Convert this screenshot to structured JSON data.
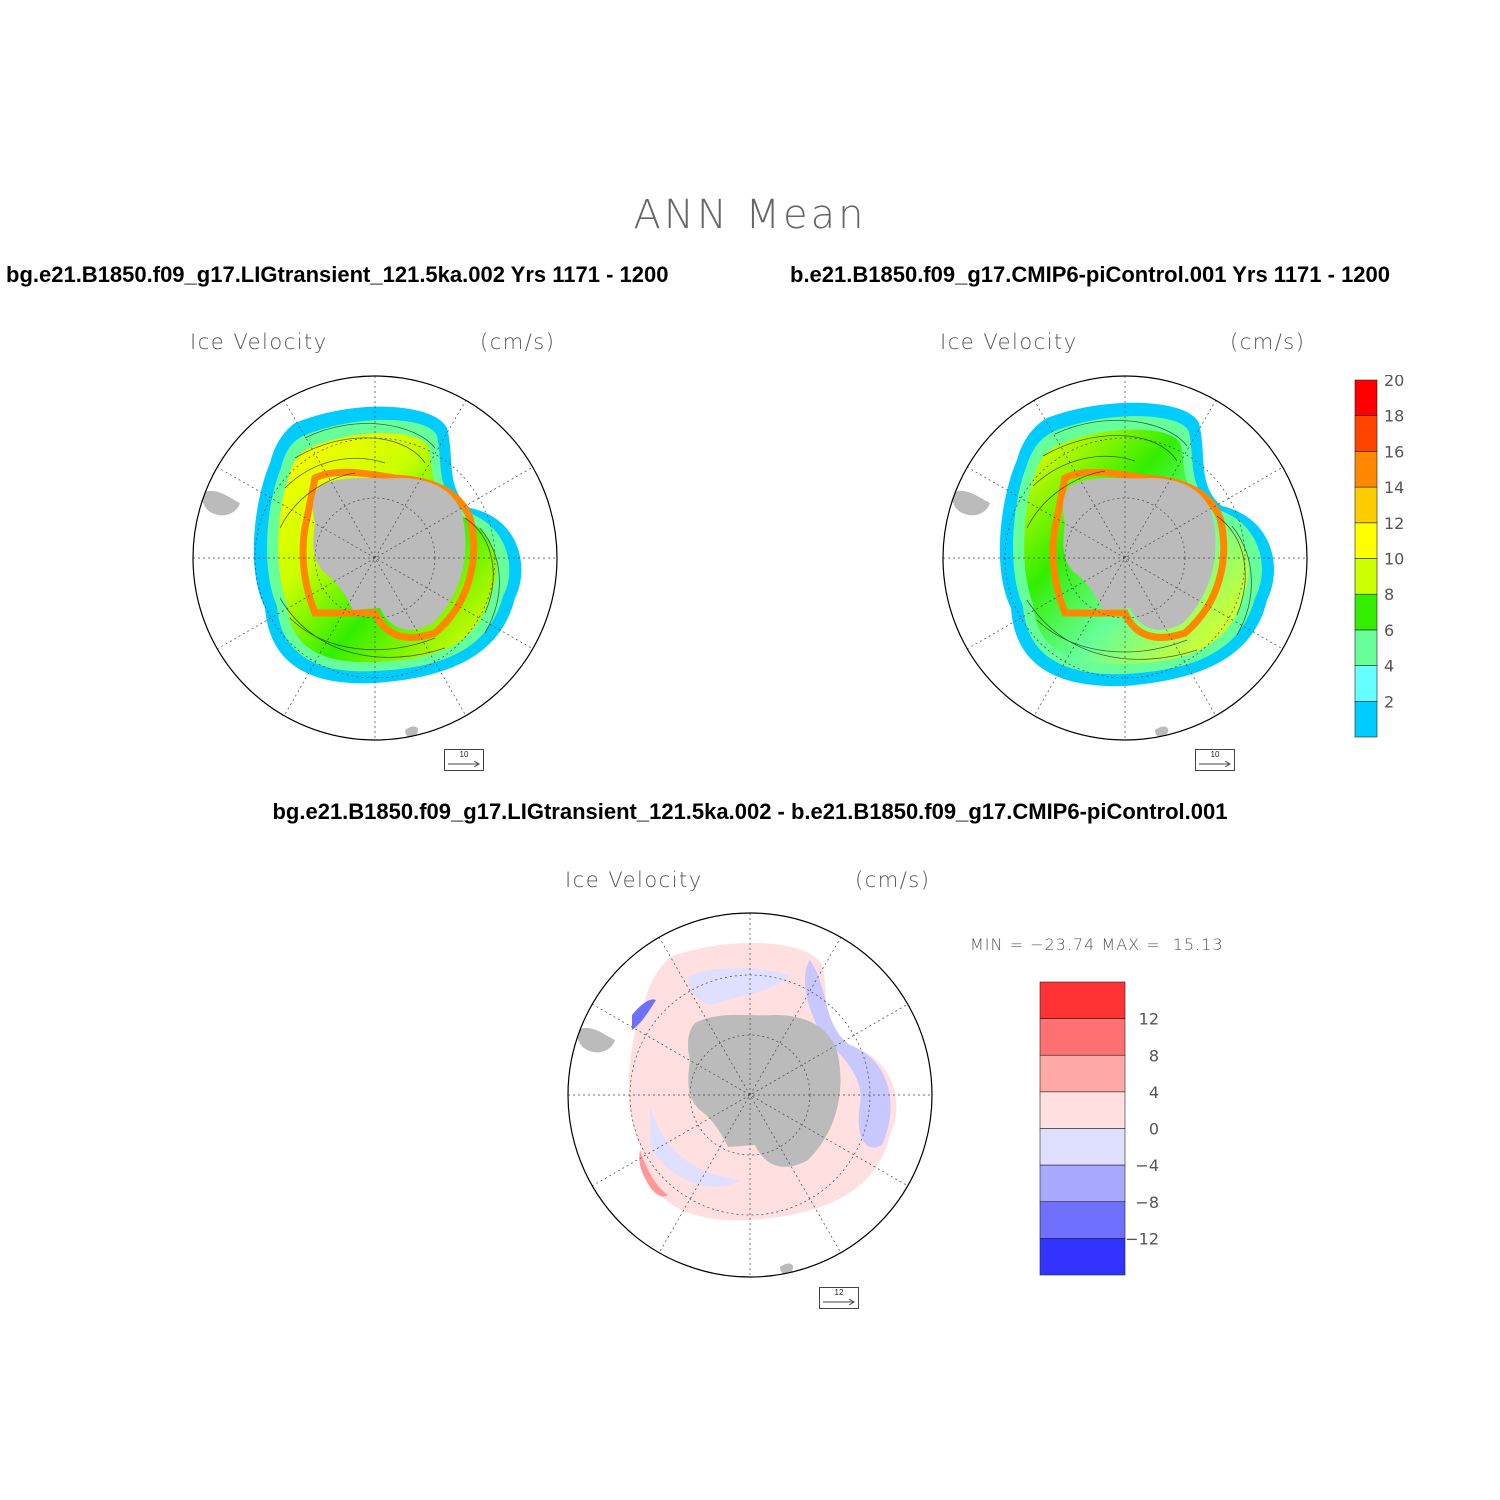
{
  "page": {
    "title": "ANN Mean",
    "case1_title": "bg.e21.B1850.f09_g17.LIGtransient_121.5ka.002  Yrs 1171 - 1200",
    "case2_title": "b.e21.B1850.f09_g17.CMIP6-piControl.001  Yrs 1171 - 1200",
    "diff_title": "bg.e21.B1850.f09_g17.LIGtransient_121.5ka.002 - b.e21.B1850.f09_g17.CMIP6-piControl.001"
  },
  "panels": {
    "case1": {
      "field": "Ice Velocity",
      "units": "(cm/s)",
      "ref_vector": "10"
    },
    "case2": {
      "field": "Ice Velocity",
      "units": "(cm/s)",
      "ref_vector": "10"
    },
    "diff": {
      "field": "Ice Velocity",
      "units": "(cm/s)",
      "ref_vector": "12",
      "min_label": "MIN =",
      "min_value": "−23.74",
      "max_label": "MAX =",
      "max_value": "15.13"
    }
  },
  "colorbar_main": {
    "levels": [
      "2",
      "4",
      "6",
      "8",
      "10",
      "12",
      "14",
      "16",
      "18",
      "20"
    ],
    "colors": [
      "#00ccff",
      "#66ffff",
      "#66ff99",
      "#33ee00",
      "#ccff00",
      "#ffff00",
      "#ffcc00",
      "#ff8800",
      "#ff4400",
      "#ff0000"
    ]
  },
  "colorbar_diff": {
    "levels": [
      "12",
      "8",
      "4",
      "0",
      "−4",
      "−8",
      "−12"
    ],
    "colors": [
      "#ff3333",
      "#ff7070",
      "#ffa8a8",
      "#ffdfdf",
      "#dfdfff",
      "#a8a8ff",
      "#7070ff",
      "#3333ff"
    ]
  },
  "colors": {
    "land": "#bbbbbb",
    "fast_ice": "#ff8800",
    "diff_pos": "#ffcccc",
    "diff_neg": "#ccccff"
  }
}
